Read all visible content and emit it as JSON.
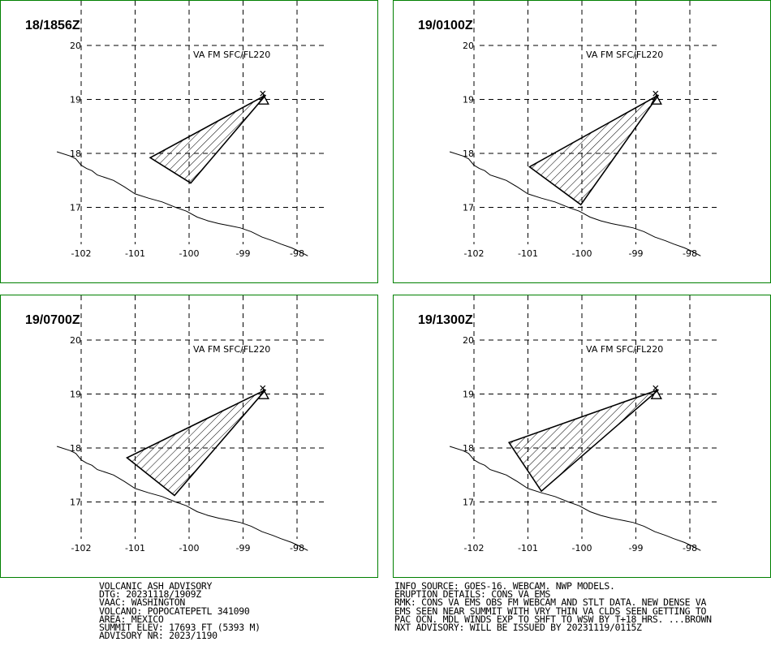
{
  "map": {
    "lon_ticks": [
      -102,
      -101,
      -100,
      -99,
      -98
    ],
    "lat_ticks": [
      17,
      18,
      19,
      20
    ],
    "lon_range": [
      -102.4,
      -97.3
    ],
    "lat_range": [
      16.15,
      20.55
    ],
    "volcano": {
      "name": "POPOCATEPETL",
      "lon": -98.62,
      "lat": 19.02
    },
    "coastline": [
      [
        -102.45,
        18.03
      ],
      [
        -102.2,
        17.95
      ],
      [
        -102.1,
        17.9
      ],
      [
        -102.0,
        17.78
      ],
      [
        -101.9,
        17.72
      ],
      [
        -101.8,
        17.68
      ],
      [
        -101.7,
        17.6
      ],
      [
        -101.55,
        17.55
      ],
      [
        -101.4,
        17.5
      ],
      [
        -101.2,
        17.38
      ],
      [
        -101.0,
        17.25
      ],
      [
        -100.75,
        17.17
      ],
      [
        -100.5,
        17.1
      ],
      [
        -100.25,
        17.0
      ],
      [
        -100.05,
        16.93
      ],
      [
        -99.85,
        16.82
      ],
      [
        -99.65,
        16.75
      ],
      [
        -99.45,
        16.7
      ],
      [
        -99.2,
        16.65
      ],
      [
        -99.05,
        16.62
      ],
      [
        -98.85,
        16.55
      ],
      [
        -98.65,
        16.45
      ],
      [
        -98.45,
        16.38
      ],
      [
        -98.3,
        16.32
      ],
      [
        -98.1,
        16.25
      ],
      [
        -97.95,
        16.18
      ],
      [
        -97.8,
        16.1
      ]
    ]
  },
  "panels": [
    {
      "time": "18/1856Z",
      "label": "VA FM SFC/FL220",
      "polygon": [
        [
          -98.58,
          19.08
        ],
        [
          -100.72,
          17.92
        ],
        [
          -99.97,
          17.45
        ]
      ]
    },
    {
      "time": "19/0100Z",
      "label": "VA FM SFC/FL220",
      "polygon": [
        [
          -98.58,
          19.08
        ],
        [
          -100.97,
          17.75
        ],
        [
          -100.02,
          17.05
        ]
      ]
    },
    {
      "time": "19/0700Z",
      "label": "VA FM SFC/FL220",
      "polygon": [
        [
          -98.58,
          19.08
        ],
        [
          -101.15,
          17.82
        ],
        [
          -100.27,
          17.12
        ]
      ]
    },
    {
      "time": "19/1300Z",
      "label": "VA FM SFC/FL220",
      "polygon": [
        [
          -98.58,
          19.08
        ],
        [
          -101.35,
          18.1
        ],
        [
          -100.75,
          17.2
        ]
      ]
    }
  ],
  "advisory_left": [
    "VOLCANIC ASH ADVISORY",
    "DTG: 20231118/1909Z",
    "VAAC: WASHINGTON",
    "VOLCANO: POPOCATEPETL 341090",
    "AREA: MEXICO",
    "SUMMIT ELEV: 17693 FT (5393 M)",
    "ADVISORY NR: 2023/1190"
  ],
  "advisory_right": [
    "INFO SOURCE: GOES-16. WEBCAM. NWP MODELS.",
    "ERUPTION DETAILS: CONS VA EMS",
    "RMK: CONS VA EMS OBS FM WEBCAM AND STLT DATA. NEW DENSE VA",
    "EMS SEEN NEAR SUMMIT WITH VRY THIN VA CLDS SEEN GETTING TO",
    "PAC OCN. MDL WINDS EXP TO SHFT TO WSW BY T+18 HRS. ...BROWN",
    "NXT ADVISORY: WILL BE ISSUED BY 20231119/0115Z"
  ],
  "colors": {
    "frame": "#008000",
    "ink": "#000000"
  }
}
